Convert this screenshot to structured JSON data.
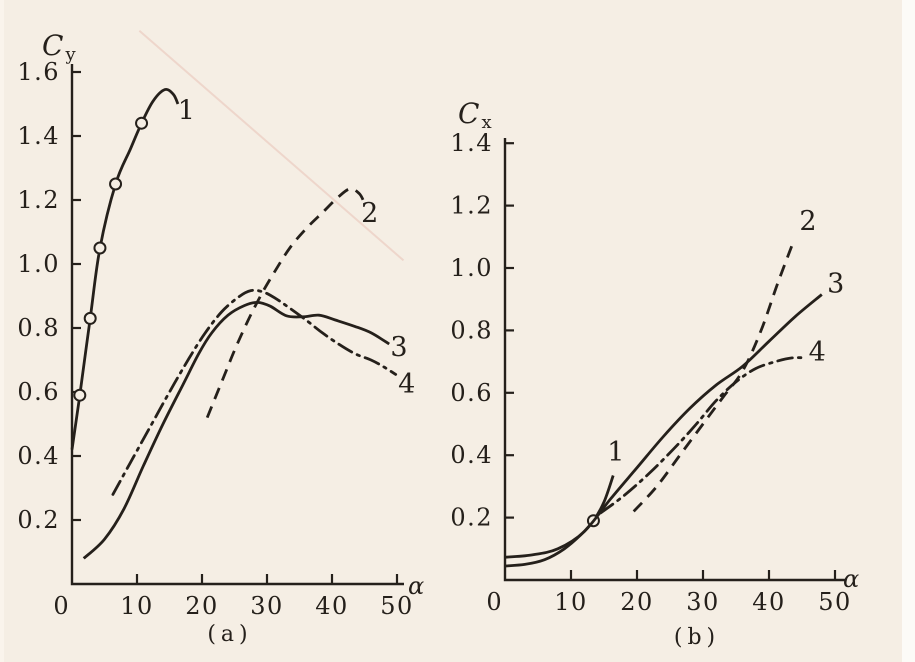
{
  "page": {
    "background": "#f5eee4",
    "ink": "#25201b",
    "paper_edge": "#fcfbf7"
  },
  "chart_data": [
    {
      "type": "line",
      "panel": "a",
      "caption": "(a)",
      "y_axis_label": {
        "main": "C",
        "sub": "y"
      },
      "x_axis_label": "α",
      "x_ticks": [
        0,
        10,
        20,
        30,
        40,
        50
      ],
      "y_ticks": [
        "0.2",
        "0.4",
        "0.6",
        "0.8",
        "1.0",
        "1.2",
        "1.4",
        "1.6"
      ],
      "xlim": [
        0,
        52
      ],
      "ylim": [
        0,
        1.62
      ],
      "grid": false,
      "series": [
        {
          "name": "1",
          "line": "solid",
          "marker": "circle",
          "label_at": [
            17.6,
            1.48
          ],
          "points": [
            [
              0,
              0.42
            ],
            [
              1.2,
              0.59
            ],
            [
              2.8,
              0.83
            ],
            [
              4.3,
              1.05
            ],
            [
              6.7,
              1.25
            ],
            [
              9,
              1.36
            ],
            [
              10.7,
              1.44
            ],
            [
              12.5,
              1.51
            ],
            [
              14.3,
              1.545
            ],
            [
              15.6,
              1.53
            ],
            [
              16.3,
              1.5
            ]
          ],
          "markers_at": [
            [
              1.2,
              0.59
            ],
            [
              2.8,
              0.83
            ],
            [
              4.3,
              1.05
            ],
            [
              6.7,
              1.25
            ],
            [
              10.7,
              1.44
            ]
          ]
        },
        {
          "name": "2",
          "line": "dashed",
          "label_at": [
            45.8,
            1.16
          ],
          "points": [
            [
              20.8,
              0.52
            ],
            [
              23,
              0.63
            ],
            [
              25,
              0.73
            ],
            [
              27,
              0.82
            ],
            [
              29,
              0.9
            ],
            [
              31,
              0.97
            ],
            [
              33.5,
              1.05
            ],
            [
              36,
              1.11
            ],
            [
              38.5,
              1.16
            ],
            [
              41,
              1.21
            ],
            [
              42.8,
              1.235
            ],
            [
              44.2,
              1.22
            ],
            [
              44.9,
              1.195
            ]
          ]
        },
        {
          "name": "3",
          "line": "solid",
          "label_at": [
            50.3,
            0.74
          ],
          "points": [
            [
              1.8,
              0.08
            ],
            [
              5,
              0.14
            ],
            [
              8,
              0.235
            ],
            [
              11,
              0.37
            ],
            [
              14,
              0.5
            ],
            [
              17,
              0.62
            ],
            [
              19.5,
              0.72
            ],
            [
              21.5,
              0.785
            ],
            [
              24,
              0.84
            ],
            [
              26.5,
              0.87
            ],
            [
              28.5,
              0.88
            ],
            [
              30.5,
              0.868
            ],
            [
              33,
              0.838
            ],
            [
              35.5,
              0.835
            ],
            [
              38,
              0.84
            ],
            [
              40.5,
              0.825
            ],
            [
              43.5,
              0.805
            ],
            [
              46,
              0.785
            ],
            [
              48.8,
              0.75
            ]
          ]
        },
        {
          "name": "4",
          "line": "dashdot",
          "label_at": [
            51.5,
            0.625
          ],
          "points": [
            [
              6.3,
              0.28
            ],
            [
              9,
              0.38
            ],
            [
              12,
              0.49
            ],
            [
              15,
              0.6
            ],
            [
              18,
              0.705
            ],
            [
              20.5,
              0.785
            ],
            [
              23,
              0.85
            ],
            [
              25.5,
              0.895
            ],
            [
              27.5,
              0.917
            ],
            [
              29.5,
              0.912
            ],
            [
              31.5,
              0.89
            ],
            [
              33.5,
              0.862
            ],
            [
              36,
              0.825
            ],
            [
              38.5,
              0.785
            ],
            [
              41,
              0.75
            ],
            [
              43.5,
              0.72
            ],
            [
              46,
              0.7
            ],
            [
              48,
              0.678
            ],
            [
              49.8,
              0.655
            ]
          ]
        }
      ]
    },
    {
      "type": "line",
      "panel": "b",
      "caption": "(b)",
      "y_axis_label": {
        "main": "C",
        "sub": "x"
      },
      "x_axis_label": "α",
      "x_ticks": [
        0,
        10,
        20,
        30,
        40,
        50
      ],
      "y_ticks": [
        "0.2",
        "0.4",
        "0.6",
        "0.8",
        "1.0",
        "1.2",
        "1.4"
      ],
      "xlim": [
        0,
        52
      ],
      "ylim": [
        0,
        1.45
      ],
      "grid": false,
      "series": [
        {
          "name": "1",
          "line": "solid",
          "marker": "circle",
          "label_at": [
            16.8,
            0.41
          ],
          "points": [
            [
              0,
              0.045
            ],
            [
              3,
              0.05
            ],
            [
              6,
              0.065
            ],
            [
              9,
              0.1
            ],
            [
              11.5,
              0.145
            ],
            [
              13.4,
              0.19
            ],
            [
              15,
              0.25
            ],
            [
              16.4,
              0.335
            ]
          ],
          "markers_at": [
            [
              13.4,
              0.19
            ]
          ]
        },
        {
          "name": "2",
          "line": "dashed",
          "label_at": [
            45.9,
            1.15
          ],
          "points": [
            [
              19.5,
              0.22
            ],
            [
              23,
              0.3
            ],
            [
              26.5,
              0.4
            ],
            [
              30,
              0.5
            ],
            [
              33,
              0.585
            ],
            [
              36,
              0.67
            ],
            [
              38.8,
              0.8
            ],
            [
              41.3,
              0.95
            ],
            [
              43.8,
              1.09
            ]
          ]
        },
        {
          "name": "3",
          "line": "solid",
          "label_at": [
            50.1,
            0.95
          ],
          "points": [
            [
              0,
              0.073
            ],
            [
              4,
              0.08
            ],
            [
              8,
              0.1
            ],
            [
              12,
              0.155
            ],
            [
              16,
              0.26
            ],
            [
              20,
              0.36
            ],
            [
              24,
              0.46
            ],
            [
              28,
              0.55
            ],
            [
              32,
              0.625
            ],
            [
              36,
              0.685
            ],
            [
              40,
              0.765
            ],
            [
              44,
              0.845
            ],
            [
              48,
              0.915
            ]
          ]
        },
        {
          "name": "4",
          "line": "dashdot",
          "label_at": [
            47.3,
            0.73
          ],
          "points": [
            [
              14.5,
              0.215
            ],
            [
              18,
              0.27
            ],
            [
              22,
              0.345
            ],
            [
              26,
              0.43
            ],
            [
              29,
              0.5
            ],
            [
              32,
              0.575
            ],
            [
              35,
              0.635
            ],
            [
              38,
              0.678
            ],
            [
              41,
              0.7
            ],
            [
              43.5,
              0.712
            ],
            [
              45.6,
              0.712
            ]
          ]
        }
      ]
    }
  ]
}
